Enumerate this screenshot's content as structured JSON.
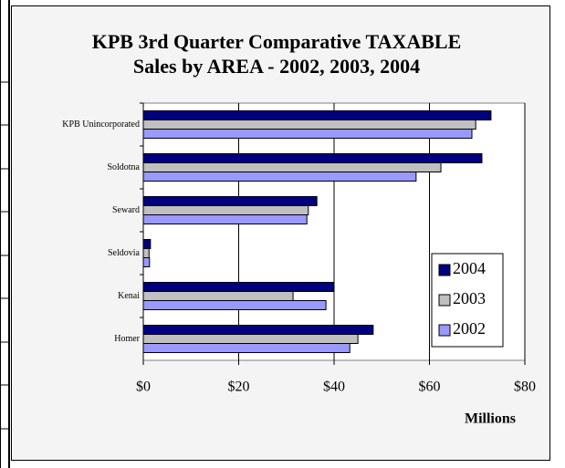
{
  "chart_data": {
    "type": "hbar",
    "title": "KPB 3rd Quarter Comparative TAXABLE Sales by AREA - 2002, 2003, 2004",
    "x_label": "Millions",
    "categories": [
      "KPB Unincorporated",
      "Soldotna",
      "Seward",
      "Seldovia",
      "Kenai",
      "Homer"
    ],
    "series": [
      {
        "name": "2004",
        "color": "#000080",
        "values": [
          72.9,
          71.0,
          36.4,
          1.5,
          40.0,
          48.2
        ]
      },
      {
        "name": "2003",
        "color": "#c0c0c0",
        "values": [
          69.7,
          62.4,
          34.6,
          1.2,
          31.4,
          45.0
        ]
      },
      {
        "name": "2002",
        "color": "#9999ff",
        "values": [
          68.9,
          57.2,
          34.3,
          1.3,
          38.3,
          43.3
        ]
      }
    ],
    "xlim": [
      0,
      80
    ],
    "xticks": [
      {
        "value": 0,
        "label": "$0"
      },
      {
        "value": 20,
        "label": "$20"
      },
      {
        "value": 40,
        "label": "$40"
      },
      {
        "value": 60,
        "label": "$60"
      },
      {
        "value": 80,
        "label": "$80"
      }
    ],
    "grid": true,
    "legend": "right"
  }
}
